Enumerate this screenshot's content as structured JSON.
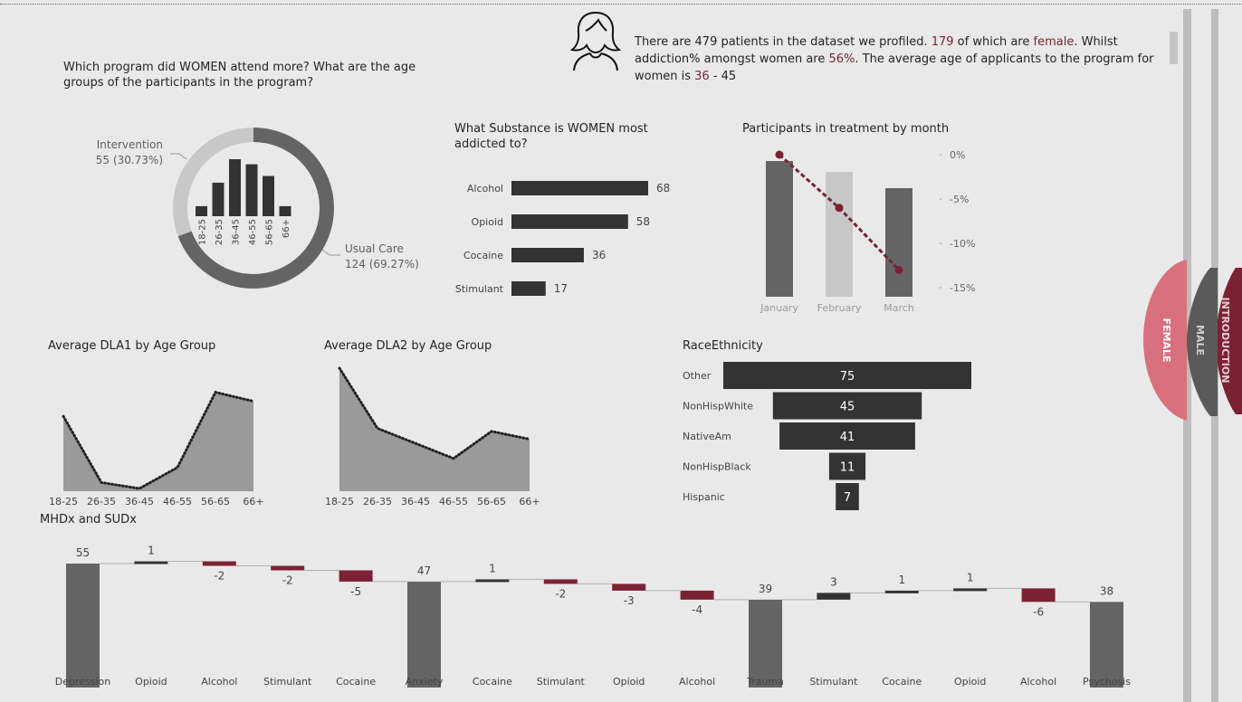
{
  "header": {
    "info_parts": [
      {
        "text": "There are 479 patients in the dataset we profiled. ",
        "hl": false
      },
      {
        "text": "179",
        "hl": true
      },
      {
        "text": " of which are ",
        "hl": false
      },
      {
        "text": "female",
        "hl": true
      },
      {
        "text": ". Whilst addiction% amongst women are ",
        "hl": false
      },
      {
        "text": "56%",
        "hl": true
      },
      {
        "text": ". The average age of applicants to the program for women is ",
        "hl": false
      },
      {
        "text": "36",
        "hl": true
      },
      {
        "text": " - 45",
        "hl": false
      }
    ],
    "icon": "woman-avatar-icon"
  },
  "nav_tabs": [
    {
      "label": "FEMALE",
      "color": "#d9707e",
      "active": true
    },
    {
      "label": "MALE",
      "color": "#5a5a5a",
      "active": false
    },
    {
      "label": "INTRODUCTION",
      "color": "#7b2232",
      "active": false
    }
  ],
  "colors": {
    "dark": "#333333",
    "mid": "#646464",
    "light": "#c8c8c8",
    "accent": "#7b2232",
    "area": "#9a9a9a"
  },
  "chart_data": [
    {
      "id": "program",
      "type": "pie",
      "title": "Which program did WOMEN attend more? What are the age groups of the participants in the program?",
      "slices": [
        {
          "label": "Intervention",
          "value": 55,
          "display": "55 (30.73%)"
        },
        {
          "label": "Usual Care",
          "value": 124,
          "display": "124 (69.27%)"
        }
      ],
      "inner_bars": {
        "categories": [
          "18-25",
          "26-35",
          "36-45",
          "46-55",
          "56-65",
          "66+"
        ],
        "values": [
          6,
          20,
          34,
          31,
          24,
          6
        ]
      }
    },
    {
      "id": "substance",
      "type": "bar",
      "title": "What Substance is WOMEN most addicted to?",
      "categories": [
        "Alcohol",
        "Opioid",
        "Cocaine",
        "Stimulant"
      ],
      "values": [
        68,
        58,
        36,
        17
      ]
    },
    {
      "id": "treatment",
      "type": "bar",
      "title": "Participants in treatment by month",
      "categories": [
        "January",
        "February",
        "March"
      ],
      "bars": [
        100,
        92,
        80
      ],
      "line": [
        0,
        -6,
        -13
      ],
      "y_ticks": [
        "0%",
        "-5%",
        "-10%",
        "-15%"
      ],
      "y_range": [
        -15,
        0
      ]
    },
    {
      "id": "dla1",
      "type": "area",
      "title": "Average DLA1 by Age Group",
      "categories": [
        "18-25",
        "26-35",
        "36-45",
        "46-55",
        "56-65",
        "66+"
      ],
      "values": [
        4.2,
        3.1,
        3.0,
        3.35,
        4.6,
        4.45
      ]
    },
    {
      "id": "dla2",
      "type": "area",
      "title": "Average DLA2 by Age Group",
      "categories": [
        "18-25",
        "26-35",
        "36-45",
        "46-55",
        "56-65",
        "66+"
      ],
      "values": [
        5.0,
        4.0,
        3.75,
        3.5,
        3.95,
        3.82
      ]
    },
    {
      "id": "race",
      "type": "bar",
      "title": "RaceEthnicity",
      "categories": [
        "Other",
        "NonHispWhite",
        "NativeAm",
        "NonHispBlack",
        "Hispanic"
      ],
      "values": [
        75,
        45,
        41,
        11,
        7
      ]
    },
    {
      "id": "waterfall",
      "type": "bar",
      "title": "MHDx and SUDx",
      "categories": [
        "Depression",
        "Opioid",
        "Alcohol",
        "Stimulant",
        "Cocaine",
        "Anxiety",
        "Cocaine",
        "Stimulant",
        "Opioid",
        "Alcohol",
        "Trauma",
        "Stimulant",
        "Cocaine",
        "Opioid",
        "Alcohol",
        "Psychosis"
      ],
      "values": [
        55,
        1,
        -2,
        -2,
        -5,
        47,
        1,
        -2,
        -3,
        -4,
        39,
        3,
        1,
        1,
        -6,
        38
      ],
      "kinds": [
        "total",
        "delta",
        "delta",
        "delta",
        "delta",
        "total",
        "delta",
        "delta",
        "delta",
        "delta",
        "total",
        "delta",
        "delta",
        "delta",
        "delta",
        "total"
      ]
    }
  ]
}
